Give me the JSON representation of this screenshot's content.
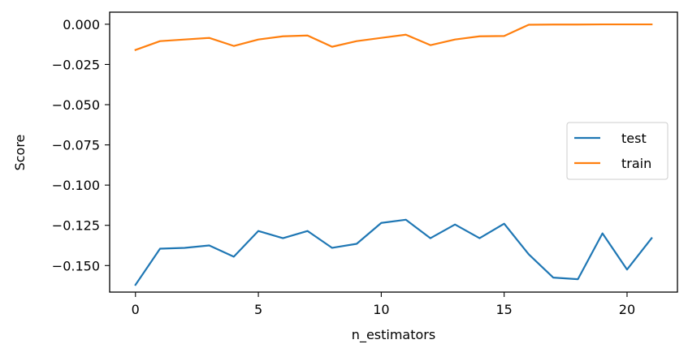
{
  "chart_data": {
    "type": "line",
    "title": "",
    "xlabel": "n_estimators",
    "ylabel": "Score",
    "xlim": [
      -1.05,
      22.05
    ],
    "ylim": [
      -0.1665,
      0.0075
    ],
    "xticks": [
      0,
      5,
      10,
      15,
      20
    ],
    "xtick_labels": [
      "0",
      "5",
      "10",
      "15",
      "20"
    ],
    "yticks": [
      0.0,
      -0.025,
      -0.05,
      -0.075,
      -0.1,
      -0.125,
      -0.15
    ],
    "ytick_labels": [
      "0.000",
      "−0.025",
      "−0.050",
      "−0.075",
      "−0.100",
      "−0.125",
      "−0.150"
    ],
    "grid": false,
    "legend_position": "center-right",
    "x": [
      0,
      1,
      2,
      3,
      4,
      5,
      6,
      7,
      8,
      9,
      10,
      11,
      12,
      13,
      14,
      15,
      16,
      17,
      18,
      19,
      20,
      21
    ],
    "series": [
      {
        "name": "test",
        "color": "#1f77b4",
        "values": [
          -0.162,
          -0.1395,
          -0.139,
          -0.1375,
          -0.1445,
          -0.1285,
          -0.133,
          -0.1285,
          -0.139,
          -0.1365,
          -0.1235,
          -0.1215,
          -0.133,
          -0.1245,
          -0.133,
          -0.124,
          -0.143,
          -0.1575,
          -0.1585,
          -0.13,
          -0.1525,
          -0.133
        ]
      },
      {
        "name": "train",
        "color": "#ff7f0e",
        "values": [
          -0.016,
          -0.0105,
          -0.0095,
          -0.0085,
          -0.0135,
          -0.0095,
          -0.0075,
          -0.007,
          -0.014,
          -0.0105,
          -0.0085,
          -0.0065,
          -0.013,
          -0.0095,
          -0.0075,
          -0.0073,
          -0.0003,
          -0.0002,
          -0.0002,
          -0.0001,
          -0.0001,
          -0.0001
        ]
      }
    ]
  }
}
